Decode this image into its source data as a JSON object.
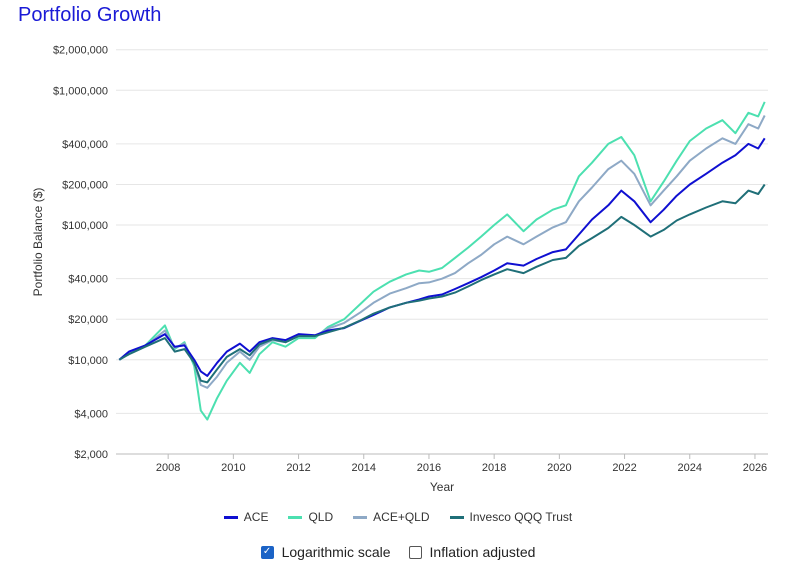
{
  "title": "Portfolio Growth",
  "chart_data": {
    "type": "line",
    "xlabel": "Year",
    "ylabel": "Portfolio Balance ($)",
    "yscale": "log",
    "ylim": [
      2000,
      2800000
    ],
    "xlim": [
      2006.4,
      2026.4
    ],
    "grid": "horizontal",
    "legend_position": "bottom",
    "yticks": [
      {
        "value": 2000,
        "label": "$2,000"
      },
      {
        "value": 4000,
        "label": "$4,000"
      },
      {
        "value": 10000,
        "label": "$10,000"
      },
      {
        "value": 20000,
        "label": "$20,000"
      },
      {
        "value": 40000,
        "label": "$40,000"
      },
      {
        "value": 100000,
        "label": "$100,000"
      },
      {
        "value": 200000,
        "label": "$200,000"
      },
      {
        "value": 400000,
        "label": "$400,000"
      },
      {
        "value": 1000000,
        "label": "$1,000,000"
      },
      {
        "value": 2000000,
        "label": "$2,000,000"
      }
    ],
    "xticks": [
      {
        "value": 2008,
        "label": "2008"
      },
      {
        "value": 2010,
        "label": "2010"
      },
      {
        "value": 2012,
        "label": "2012"
      },
      {
        "value": 2014,
        "label": "2014"
      },
      {
        "value": 2016,
        "label": "2016"
      },
      {
        "value": 2018,
        "label": "2018"
      },
      {
        "value": 2020,
        "label": "2020"
      },
      {
        "value": 2022,
        "label": "2022"
      },
      {
        "value": 2024,
        "label": "2024"
      },
      {
        "value": 2026,
        "label": "2026"
      }
    ],
    "series": [
      {
        "name": "ACE",
        "color": "#0f0fd1",
        "points": [
          [
            2006.5,
            10000
          ],
          [
            2006.8,
            11500
          ],
          [
            2007.3,
            12800
          ],
          [
            2007.9,
            15500
          ],
          [
            2008.2,
            12500
          ],
          [
            2008.5,
            12800
          ],
          [
            2008.8,
            10000
          ],
          [
            2009.0,
            8200
          ],
          [
            2009.2,
            7600
          ],
          [
            2009.5,
            9500
          ],
          [
            2009.8,
            11500
          ],
          [
            2010.2,
            13200
          ],
          [
            2010.5,
            11500
          ],
          [
            2010.8,
            13500
          ],
          [
            2011.2,
            14500
          ],
          [
            2011.6,
            14000
          ],
          [
            2012.0,
            15500
          ],
          [
            2012.5,
            15200
          ],
          [
            2012.9,
            16500
          ],
          [
            2013.4,
            17200
          ],
          [
            2013.9,
            19500
          ],
          [
            2014.3,
            21500
          ],
          [
            2014.8,
            24500
          ],
          [
            2015.3,
            26500
          ],
          [
            2015.7,
            28000
          ],
          [
            2016.0,
            29500
          ],
          [
            2016.4,
            30500
          ],
          [
            2016.8,
            33500
          ],
          [
            2017.2,
            37000
          ],
          [
            2017.6,
            41000
          ],
          [
            2018.0,
            46000
          ],
          [
            2018.4,
            52000
          ],
          [
            2018.9,
            50000
          ],
          [
            2019.3,
            56000
          ],
          [
            2019.8,
            63000
          ],
          [
            2020.2,
            66000
          ],
          [
            2020.6,
            85000
          ],
          [
            2021.0,
            110000
          ],
          [
            2021.5,
            140000
          ],
          [
            2021.9,
            180000
          ],
          [
            2022.3,
            150000
          ],
          [
            2022.8,
            105000
          ],
          [
            2023.2,
            130000
          ],
          [
            2023.6,
            165000
          ],
          [
            2024.0,
            200000
          ],
          [
            2024.5,
            240000
          ],
          [
            2025.0,
            290000
          ],
          [
            2025.4,
            330000
          ],
          [
            2025.8,
            400000
          ],
          [
            2026.1,
            370000
          ],
          [
            2026.3,
            440000
          ]
        ]
      },
      {
        "name": "QLD",
        "color": "#4ce0b0",
        "points": [
          [
            2006.5,
            10000
          ],
          [
            2006.8,
            11200
          ],
          [
            2007.3,
            12800
          ],
          [
            2007.9,
            18000
          ],
          [
            2008.2,
            12000
          ],
          [
            2008.5,
            13500
          ],
          [
            2008.8,
            9000
          ],
          [
            2009.0,
            4200
          ],
          [
            2009.2,
            3600
          ],
          [
            2009.5,
            5200
          ],
          [
            2009.8,
            7000
          ],
          [
            2010.2,
            9500
          ],
          [
            2010.5,
            8000
          ],
          [
            2010.8,
            11000
          ],
          [
            2011.2,
            13500
          ],
          [
            2011.6,
            12500
          ],
          [
            2012.0,
            14500
          ],
          [
            2012.5,
            14500
          ],
          [
            2012.9,
            17500
          ],
          [
            2013.4,
            20000
          ],
          [
            2013.9,
            26000
          ],
          [
            2014.3,
            32000
          ],
          [
            2014.8,
            38000
          ],
          [
            2015.3,
            43000
          ],
          [
            2015.7,
            46000
          ],
          [
            2016.0,
            45000
          ],
          [
            2016.4,
            48000
          ],
          [
            2016.8,
            57000
          ],
          [
            2017.2,
            68000
          ],
          [
            2017.6,
            82000
          ],
          [
            2018.0,
            100000
          ],
          [
            2018.4,
            120000
          ],
          [
            2018.9,
            90000
          ],
          [
            2019.3,
            110000
          ],
          [
            2019.8,
            130000
          ],
          [
            2020.2,
            140000
          ],
          [
            2020.6,
            230000
          ],
          [
            2021.0,
            290000
          ],
          [
            2021.5,
            400000
          ],
          [
            2021.9,
            450000
          ],
          [
            2022.3,
            330000
          ],
          [
            2022.8,
            150000
          ],
          [
            2023.2,
            210000
          ],
          [
            2023.6,
            300000
          ],
          [
            2024.0,
            420000
          ],
          [
            2024.5,
            520000
          ],
          [
            2025.0,
            600000
          ],
          [
            2025.4,
            480000
          ],
          [
            2025.8,
            680000
          ],
          [
            2026.1,
            640000
          ],
          [
            2026.3,
            820000
          ]
        ]
      },
      {
        "name": "ACE+QLD",
        "color": "#8ea9c6",
        "points": [
          [
            2006.5,
            10000
          ],
          [
            2006.8,
            11300
          ],
          [
            2007.3,
            12600
          ],
          [
            2007.9,
            16500
          ],
          [
            2008.2,
            12300
          ],
          [
            2008.5,
            13200
          ],
          [
            2008.8,
            9500
          ],
          [
            2009.0,
            6500
          ],
          [
            2009.2,
            6200
          ],
          [
            2009.5,
            7500
          ],
          [
            2009.8,
            9500
          ],
          [
            2010.2,
            11500
          ],
          [
            2010.5,
            10000
          ],
          [
            2010.8,
            12500
          ],
          [
            2011.2,
            14000
          ],
          [
            2011.6,
            13500
          ],
          [
            2012.0,
            15000
          ],
          [
            2012.5,
            15000
          ],
          [
            2012.9,
            17000
          ],
          [
            2013.4,
            18800
          ],
          [
            2013.9,
            22500
          ],
          [
            2014.3,
            26500
          ],
          [
            2014.8,
            31000
          ],
          [
            2015.3,
            34000
          ],
          [
            2015.7,
            37000
          ],
          [
            2016.0,
            37500
          ],
          [
            2016.4,
            40000
          ],
          [
            2016.8,
            44000
          ],
          [
            2017.2,
            52000
          ],
          [
            2017.6,
            60000
          ],
          [
            2018.0,
            72000
          ],
          [
            2018.4,
            82000
          ],
          [
            2018.9,
            72000
          ],
          [
            2019.3,
            82000
          ],
          [
            2019.8,
            96000
          ],
          [
            2020.2,
            105000
          ],
          [
            2020.6,
            150000
          ],
          [
            2021.0,
            190000
          ],
          [
            2021.5,
            260000
          ],
          [
            2021.9,
            300000
          ],
          [
            2022.3,
            240000
          ],
          [
            2022.8,
            140000
          ],
          [
            2023.2,
            180000
          ],
          [
            2023.6,
            230000
          ],
          [
            2024.0,
            300000
          ],
          [
            2024.5,
            370000
          ],
          [
            2025.0,
            440000
          ],
          [
            2025.4,
            400000
          ],
          [
            2025.8,
            560000
          ],
          [
            2026.1,
            520000
          ],
          [
            2026.3,
            650000
          ]
        ]
      },
      {
        "name": "Invesco QQQ Trust",
        "color": "#1f6f78",
        "points": [
          [
            2006.5,
            10000
          ],
          [
            2006.8,
            11000
          ],
          [
            2007.3,
            12500
          ],
          [
            2007.9,
            14500
          ],
          [
            2008.2,
            11500
          ],
          [
            2008.5,
            12000
          ],
          [
            2008.8,
            9500
          ],
          [
            2009.0,
            7000
          ],
          [
            2009.2,
            6800
          ],
          [
            2009.5,
            8500
          ],
          [
            2009.8,
            10500
          ],
          [
            2010.2,
            12000
          ],
          [
            2010.5,
            10800
          ],
          [
            2010.8,
            13000
          ],
          [
            2011.2,
            14200
          ],
          [
            2011.6,
            13500
          ],
          [
            2012.0,
            15000
          ],
          [
            2012.5,
            15000
          ],
          [
            2012.9,
            16000
          ],
          [
            2013.4,
            17300
          ],
          [
            2013.9,
            19600
          ],
          [
            2014.3,
            22000
          ],
          [
            2014.8,
            24500
          ],
          [
            2015.3,
            26500
          ],
          [
            2015.7,
            27500
          ],
          [
            2016.0,
            28500
          ],
          [
            2016.4,
            29500
          ],
          [
            2016.8,
            31500
          ],
          [
            2017.2,
            35000
          ],
          [
            2017.6,
            39000
          ],
          [
            2018.0,
            43000
          ],
          [
            2018.4,
            47000
          ],
          [
            2018.9,
            44000
          ],
          [
            2019.3,
            49000
          ],
          [
            2019.8,
            55000
          ],
          [
            2020.2,
            57000
          ],
          [
            2020.6,
            70000
          ],
          [
            2021.0,
            80000
          ],
          [
            2021.5,
            95000
          ],
          [
            2021.9,
            115000
          ],
          [
            2022.3,
            100000
          ],
          [
            2022.8,
            82000
          ],
          [
            2023.2,
            92000
          ],
          [
            2023.6,
            108000
          ],
          [
            2024.0,
            120000
          ],
          [
            2024.5,
            135000
          ],
          [
            2025.0,
            150000
          ],
          [
            2025.4,
            145000
          ],
          [
            2025.8,
            180000
          ],
          [
            2026.1,
            170000
          ],
          [
            2026.3,
            200000
          ]
        ]
      }
    ]
  },
  "options": {
    "log_scale": {
      "label": "Logarithmic scale",
      "checked": true
    },
    "inflation": {
      "label": "Inflation adjusted",
      "checked": false
    }
  }
}
